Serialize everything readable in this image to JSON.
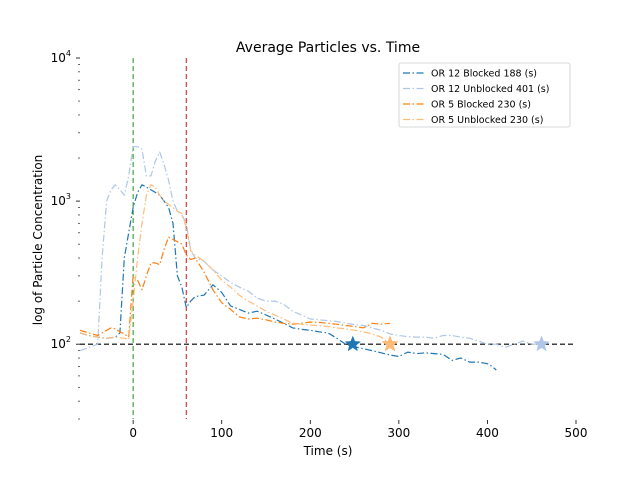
{
  "chart_data": {
    "type": "line",
    "title": "Average Particles vs. Time",
    "xlabel": "Time (s)",
    "ylabel": "log of Particle Concentration",
    "xlim": [
      -60,
      500
    ],
    "ylim": [
      30,
      10000
    ],
    "yscale": "log",
    "x_ticks": [
      0,
      100,
      200,
      300,
      400,
      500
    ],
    "x_tick_labels": [
      "0",
      "100",
      "200",
      "300",
      "400",
      "500"
    ],
    "y_ticks": [
      100,
      1000,
      10000
    ],
    "y_tick_labels": [
      {
        "base": "10",
        "exp": "2"
      },
      {
        "base": "10",
        "exp": "3"
      },
      {
        "base": "10",
        "exp": "4"
      }
    ],
    "legend_position": "top-right",
    "grid": false,
    "reference_lines": [
      {
        "orientation": "vertical",
        "x": 0,
        "color": "#2ca02c",
        "style": "dashed"
      },
      {
        "orientation": "vertical",
        "x": 60,
        "color": "#d62728",
        "style": "dashed"
      },
      {
        "orientation": "horizontal",
        "y": 100,
        "color": "#000000",
        "style": "dashed"
      }
    ],
    "series": [
      {
        "name": "OR 12 Blocked 188 (s)",
        "color": "#1f77b4",
        "style": "dashdot",
        "x": [
          -60,
          -50,
          -40,
          -30,
          -20,
          -15,
          -10,
          -5,
          0,
          5,
          10,
          15,
          20,
          25,
          30,
          35,
          40,
          45,
          50,
          55,
          60,
          65,
          70,
          80,
          90,
          100,
          110,
          120,
          130,
          140,
          150,
          160,
          170,
          180,
          190,
          200,
          210,
          220,
          230,
          240,
          250,
          260,
          270,
          280,
          290,
          300,
          310,
          320,
          330,
          340,
          350,
          360,
          370,
          380,
          390,
          400,
          405,
          410
        ],
        "y": [
          120,
          115,
          112,
          110,
          112,
          120,
          400,
          600,
          900,
          1150,
          1300,
          1250,
          1200,
          1150,
          1100,
          1000,
          900,
          700,
          300,
          250,
          180,
          200,
          215,
          220,
          260,
          230,
          185,
          175,
          165,
          170,
          160,
          150,
          140,
          130,
          127,
          125,
          122,
          120,
          110,
          100,
          96,
          93,
          90,
          87,
          84,
          82,
          88,
          86,
          87,
          86,
          85,
          77,
          80,
          75,
          75,
          73,
          70,
          66
        ]
      },
      {
        "name": "OR 12 Unblocked 401 (s)",
        "color": "#aec7e8",
        "style": "dashdot",
        "x": [
          -60,
          -50,
          -40,
          -35,
          -30,
          -25,
          -20,
          -15,
          -10,
          -5,
          0,
          5,
          10,
          15,
          20,
          25,
          30,
          35,
          40,
          45,
          50,
          55,
          60,
          65,
          70,
          80,
          90,
          100,
          110,
          120,
          130,
          140,
          150,
          160,
          170,
          180,
          190,
          200,
          210,
          220,
          230,
          240,
          250,
          260,
          270,
          280,
          290,
          300,
          310,
          320,
          330,
          340,
          350,
          360,
          370,
          380,
          390,
          400,
          410,
          420,
          430,
          440,
          450,
          460
        ],
        "y": [
          90,
          95,
          100,
          400,
          1000,
          1200,
          1300,
          1200,
          1100,
          1500,
          2400,
          2400,
          2300,
          1500,
          1500,
          1900,
          2200,
          1800,
          1400,
          1000,
          850,
          800,
          700,
          450,
          400,
          380,
          330,
          300,
          270,
          250,
          235,
          210,
          200,
          200,
          190,
          170,
          160,
          150,
          148,
          146,
          144,
          140,
          137,
          135,
          130,
          125,
          118,
          115,
          113,
          112,
          112,
          110,
          115,
          115,
          112,
          110,
          105,
          100,
          100,
          95,
          100,
          105,
          100,
          100
        ]
      },
      {
        "name": "OR 5 Blocked 230 (s)",
        "color": "#ff7f0e",
        "style": "dashdot",
        "x": [
          -60,
          -50,
          -40,
          -30,
          -25,
          -20,
          -15,
          -10,
          -5,
          0,
          5,
          10,
          15,
          20,
          25,
          30,
          35,
          40,
          45,
          50,
          55,
          60,
          65,
          70,
          80,
          90,
          100,
          110,
          120,
          130,
          140,
          150,
          160,
          170,
          180,
          190,
          200,
          210,
          220,
          230,
          240,
          250,
          260,
          270,
          280,
          290
        ],
        "y": [
          125,
          120,
          115,
          125,
          130,
          128,
          122,
          118,
          112,
          300,
          280,
          240,
          300,
          370,
          370,
          360,
          460,
          560,
          540,
          520,
          500,
          420,
          390,
          400,
          320,
          240,
          195,
          175,
          155,
          150,
          152,
          148,
          143,
          140,
          138,
          140,
          143,
          142,
          140,
          138,
          135,
          133,
          130,
          140,
          138,
          140
        ]
      },
      {
        "name": "OR 5 Unblocked 230 (s)",
        "color": "#ffbb78",
        "style": "dashdot",
        "x": [
          -60,
          -50,
          -40,
          -30,
          -20,
          -10,
          -5,
          0,
          5,
          10,
          15,
          20,
          25,
          30,
          35,
          40,
          45,
          50,
          55,
          60,
          65,
          70,
          80,
          90,
          100,
          110,
          120,
          130,
          140,
          150,
          160,
          170,
          180,
          190,
          200,
          210,
          220,
          230,
          240,
          250,
          260,
          270,
          280,
          290
        ],
        "y": [
          120,
          115,
          112,
          110,
          112,
          110,
          108,
          200,
          400,
          700,
          1100,
          1300,
          1250,
          1100,
          1000,
          950,
          900,
          850,
          820,
          650,
          450,
          420,
          380,
          330,
          280,
          250,
          220,
          200,
          185,
          170,
          160,
          150,
          140,
          138,
          136,
          135,
          133,
          130,
          128,
          125,
          122,
          118,
          112,
          100
        ]
      }
    ],
    "markers": [
      {
        "series": "OR 12 Blocked 188 (s)",
        "x": 248,
        "y": 100,
        "color": "#1f77b4",
        "shape": "star"
      },
      {
        "series": "OR 5 Blocked 230 (s)",
        "x": 290,
        "y": 100,
        "color": "#ff7f0e",
        "shape": "star"
      },
      {
        "series": "OR 5 Unblocked 230 (s)",
        "x": 290,
        "y": 100,
        "color": "#ffbb78",
        "shape": "star"
      },
      {
        "series": "OR 12 Unblocked 401 (s)",
        "x": 461,
        "y": 100,
        "color": "#aec7e8",
        "shape": "star"
      }
    ]
  }
}
